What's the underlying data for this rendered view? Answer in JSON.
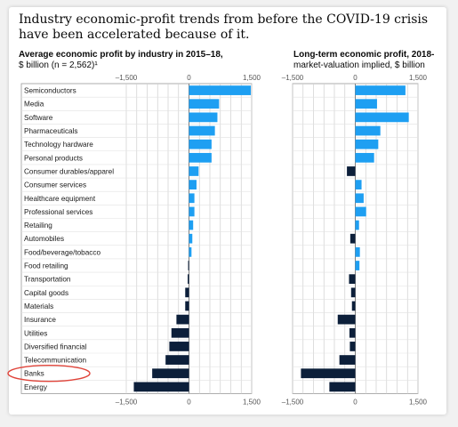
{
  "title": "Industry economic-profit trends from before the COVID-19 crisis have been accelerated because of it.",
  "colors": {
    "positive": "#1e9ff2",
    "negative": "#0c1f3a",
    "highlight": "#e0443a",
    "grid": "#cfcfcf"
  },
  "chart_data": [
    {
      "type": "bar",
      "orientation": "horizontal",
      "title": "Average economic profit by industry in 2015–18,",
      "subtitle": "$ billion (n = 2,562)¹",
      "xlim": [
        -1500,
        1500
      ],
      "xticks": [
        "–1,500",
        "0",
        "1,500"
      ],
      "grid": true,
      "categories": [
        "Semiconductors",
        "Media",
        "Software",
        "Pharmaceuticals",
        "Technology hardware",
        "Personal products",
        "Consumer durables/apparel",
        "Consumer services",
        "Healthcare equipment",
        "Professional services",
        "Retailing",
        "Automobiles",
        "Food/beverage/tobacco",
        "Food retailing",
        "Transportation",
        "Capital goods",
        "Materials",
        "Insurance",
        "Utilities",
        "Diversified financial",
        "Telecommunication",
        "Banks",
        "Energy"
      ],
      "values": [
        1480,
        720,
        680,
        620,
        540,
        540,
        230,
        180,
        130,
        130,
        100,
        80,
        60,
        -20,
        -30,
        -90,
        -90,
        -300,
        -420,
        -470,
        -560,
        -880,
        -1320
      ]
    },
    {
      "type": "bar",
      "orientation": "horizontal",
      "title": "Long-term economic profit, 2018-",
      "subtitle": "market-valuation implied, $ billion",
      "xlim": [
        -1500,
        1500
      ],
      "xticks": [
        "–1,500",
        "0",
        "1,500"
      ],
      "grid": true,
      "categories": [
        "Semiconductors",
        "Media",
        "Software",
        "Pharmaceuticals",
        "Technology hardware",
        "Personal products",
        "Consumer durables/apparel",
        "Consumer services",
        "Healthcare equipment",
        "Professional services",
        "Retailing",
        "Automobiles",
        "Food/beverage/tobacco",
        "Food retailing",
        "Transportation",
        "Capital goods",
        "Materials",
        "Insurance",
        "Utilities",
        "Diversified financial",
        "Telecommunication",
        "Banks",
        "Energy"
      ],
      "values": [
        1200,
        520,
        1280,
        600,
        550,
        450,
        -200,
        150,
        200,
        260,
        90,
        -120,
        110,
        100,
        -150,
        -100,
        -80,
        -420,
        -140,
        -130,
        -380,
        -1300,
        -620
      ]
    }
  ]
}
